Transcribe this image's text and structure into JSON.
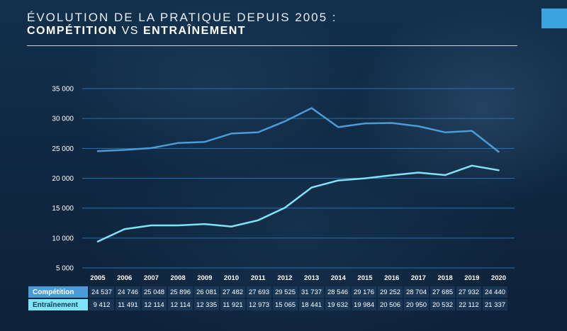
{
  "title": {
    "line1": "ÉVOLUTION DE LA PRATIQUE DEPUIS 2005 :",
    "part1": "COMPÉTITION",
    "vs": "VS",
    "part2": "ENTRAÎNEMENT"
  },
  "colors": {
    "competition": "#4a9bd6",
    "entrainement": "#7fe4f5",
    "grid": "#2f7bbd",
    "accent_box": "#3aa3e0"
  },
  "chart_data": {
    "type": "line",
    "x": [
      "2005",
      "2006",
      "2007",
      "2008",
      "2009",
      "2010",
      "2011",
      "2012",
      "2013",
      "2014",
      "2015",
      "2016",
      "2017",
      "2018",
      "2019",
      "2020"
    ],
    "yticks": [
      "35 000",
      "30 000",
      "25 000",
      "20 000",
      "15 000",
      "10 000",
      "5 000"
    ],
    "ylim": [
      5000,
      35000
    ],
    "grid": true,
    "series": [
      {
        "name": "Compétition",
        "values": [
          24537,
          24746,
          25048,
          25896,
          26081,
          27482,
          27693,
          29525,
          31737,
          28546,
          29176,
          29252,
          28704,
          27685,
          27932,
          24440
        ],
        "display": [
          "24 537",
          "24 746",
          "25 048",
          "25 896",
          "26 081",
          "27 482",
          "27 693",
          "29 525",
          "31 737",
          "28 546",
          "29 176",
          "29 252",
          "28 704",
          "27 685",
          "27 932",
          "24 440"
        ]
      },
      {
        "name": "Entraînement",
        "values": [
          9412,
          11491,
          12114,
          12114,
          12335,
          11921,
          12973,
          15065,
          18441,
          19632,
          19984,
          20506,
          20950,
          20532,
          22112,
          21337
        ],
        "display": [
          "9 412",
          "11 491",
          "12 114",
          "12 114",
          "12 335",
          "11 921",
          "12 973",
          "15 065",
          "18 441",
          "19 632",
          "19 984",
          "20 506",
          "20 950",
          "20 532",
          "22 112",
          "21 337"
        ]
      }
    ]
  }
}
